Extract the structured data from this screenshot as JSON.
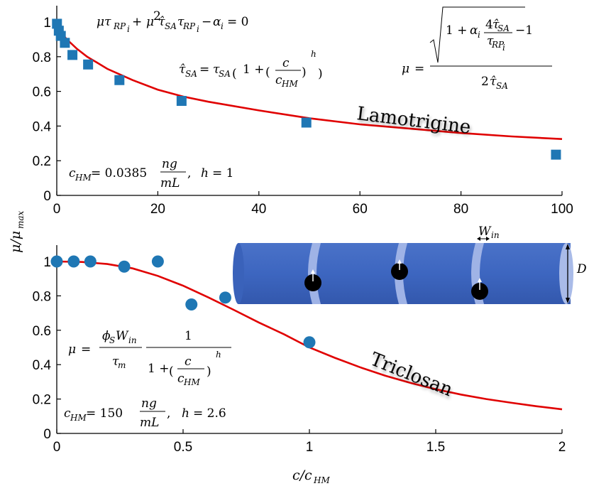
{
  "chart_data": [
    {
      "type": "scatter",
      "title": "",
      "xlabel": "",
      "ylabel": "μ/μmax",
      "xlim": [
        0,
        100
      ],
      "ylim": [
        0,
        1
      ],
      "xticks": [
        "0",
        "20",
        "40",
        "60",
        "80",
        "100"
      ],
      "yticks": [
        "0",
        "0.2",
        "0.4",
        "0.6",
        "0.8",
        "1"
      ],
      "grid": false,
      "compound_label": "Lamotrigine",
      "marker": "square",
      "marker_color": "#1f77b4",
      "fit_color": "#e00000",
      "series": [
        {
          "x": [
            0.04,
            0.4,
            0.8,
            1.6,
            3.1,
            6.2,
            12.4,
            24.7,
            49.4,
            98.8
          ],
          "values": [
            0.99,
            0.95,
            0.92,
            0.88,
            0.81,
            0.755,
            0.665,
            0.545,
            0.42,
            0.235
          ]
        }
      ],
      "fit_curve": {
        "x": [
          0,
          1,
          2,
          4,
          6,
          8,
          10,
          15,
          20,
          25,
          30,
          40,
          50,
          60,
          70,
          80,
          90,
          100
        ],
        "values": [
          1.0,
          0.935,
          0.9,
          0.845,
          0.8,
          0.765,
          0.73,
          0.665,
          0.61,
          0.57,
          0.54,
          0.49,
          0.445,
          0.41,
          0.385,
          0.36,
          0.34,
          0.325
        ]
      },
      "annotations": {
        "eq1": "μτRPi + μ²τ̂SAτRPi − αi = 0",
        "eq2": "τ̂SA = τSA(1 + (c/cHM)^h)",
        "eq3": "μ = (√(1 + αi·4τ̂SA/τRPi) − 1) / 2τ̂SA",
        "params": "cHM = 0.0385 ng/mL, h = 1"
      }
    },
    {
      "type": "scatter",
      "title": "",
      "xlabel": "c/cHM",
      "ylabel": "μ/μmax",
      "xlim": [
        0,
        2
      ],
      "ylim": [
        0,
        1
      ],
      "xticks": [
        "0",
        "0.5",
        "1",
        "1.5",
        "2"
      ],
      "yticks": [
        "0",
        "0.2",
        "0.4",
        "0.6",
        "0.8",
        "1"
      ],
      "grid": false,
      "compound_label": "Triclosan",
      "marker": "circle",
      "marker_color": "#1f77b4",
      "fit_color": "#e00000",
      "series": [
        {
          "x": [
            0.0,
            0.067,
            0.133,
            0.267,
            0.4,
            0.533,
            0.667,
            1.0
          ],
          "values": [
            1.0,
            1.0,
            1.0,
            0.97,
            1.0,
            0.75,
            0.79,
            0.53
          ]
        }
      ],
      "fit_curve": {
        "x": [
          0,
          0.1,
          0.2,
          0.3,
          0.4,
          0.5,
          0.6,
          0.7,
          0.8,
          0.9,
          1.0,
          1.1,
          1.2,
          1.3,
          1.4,
          1.5,
          1.6,
          1.7,
          1.8,
          1.9,
          2.0
        ],
        "values": [
          1.0,
          0.997,
          0.985,
          0.96,
          0.916,
          0.859,
          0.791,
          0.719,
          0.645,
          0.576,
          0.5,
          0.44,
          0.385,
          0.336,
          0.294,
          0.257,
          0.226,
          0.2,
          0.178,
          0.158,
          0.14
        ]
      },
      "annotations": {
        "eq": "μ = (φS Win / τm) · 1 / (1 + (c/cHM)^h)",
        "params": "cHM = 150 ng/mL, h = 2.6",
        "schematic_labels": [
          "Win",
          "D"
        ]
      }
    }
  ]
}
